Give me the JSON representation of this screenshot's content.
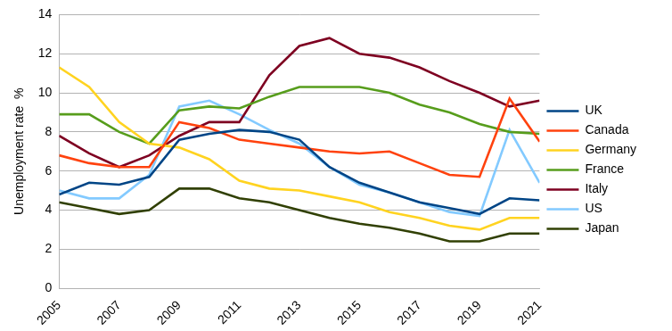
{
  "chart_data": {
    "type": "line",
    "y_label": "Unemployment rate  %",
    "x": [
      2005,
      2006,
      2007,
      2008,
      2009,
      2010,
      2011,
      2012,
      2013,
      2014,
      2015,
      2016,
      2017,
      2018,
      2019,
      2020,
      2021
    ],
    "xlim": [
      2005,
      2021
    ],
    "xticks": [
      2005,
      2007,
      2009,
      2011,
      2013,
      2015,
      2017,
      2019,
      2021
    ],
    "ylim": [
      0,
      14
    ],
    "yticks": [
      0,
      2,
      4,
      6,
      8,
      10,
      12,
      14
    ],
    "grid": true,
    "legend": "right",
    "series": [
      {
        "name": "UK",
        "color": "#004586",
        "values": [
          4.8,
          5.4,
          5.3,
          5.7,
          7.6,
          7.9,
          8.1,
          8.0,
          7.6,
          6.2,
          5.4,
          4.9,
          4.4,
          4.1,
          3.8,
          4.6,
          4.5
        ]
      },
      {
        "name": "Canada",
        "color": "#ff420e",
        "values": [
          6.8,
          6.4,
          6.2,
          6.2,
          8.5,
          8.2,
          7.6,
          7.4,
          7.2,
          7.0,
          6.9,
          7.0,
          6.4,
          5.8,
          5.7,
          9.7,
          7.5
        ]
      },
      {
        "name": "Germany",
        "color": "#ffd320",
        "values": [
          11.3,
          10.3,
          8.5,
          7.4,
          7.2,
          6.6,
          5.5,
          5.1,
          5.0,
          4.7,
          4.4,
          3.9,
          3.6,
          3.2,
          3.0,
          3.6,
          3.6
        ]
      },
      {
        "name": "France",
        "color": "#579d1c",
        "values": [
          8.9,
          8.9,
          8.0,
          7.4,
          9.1,
          9.3,
          9.2,
          9.8,
          10.3,
          10.3,
          10.3,
          10.0,
          9.4,
          9.0,
          8.4,
          8.0,
          7.9
        ]
      },
      {
        "name": "Italy",
        "color": "#7e0021",
        "values": [
          7.8,
          6.9,
          6.2,
          6.8,
          7.8,
          8.5,
          8.5,
          10.9,
          12.4,
          12.8,
          12.0,
          11.8,
          11.3,
          10.6,
          10.0,
          9.3,
          9.6
        ]
      },
      {
        "name": "US",
        "color": "#83caff",
        "values": [
          5.0,
          4.6,
          4.6,
          5.8,
          9.3,
          9.6,
          8.9,
          8.1,
          7.4,
          6.2,
          5.3,
          4.9,
          4.4,
          3.9,
          3.7,
          8.1,
          5.4
        ]
      },
      {
        "name": "Japan",
        "color": "#314004",
        "values": [
          4.4,
          4.1,
          3.8,
          4.0,
          5.1,
          5.1,
          4.6,
          4.4,
          4.0,
          3.6,
          3.3,
          3.1,
          2.8,
          2.4,
          2.4,
          2.8,
          2.8
        ]
      }
    ]
  }
}
